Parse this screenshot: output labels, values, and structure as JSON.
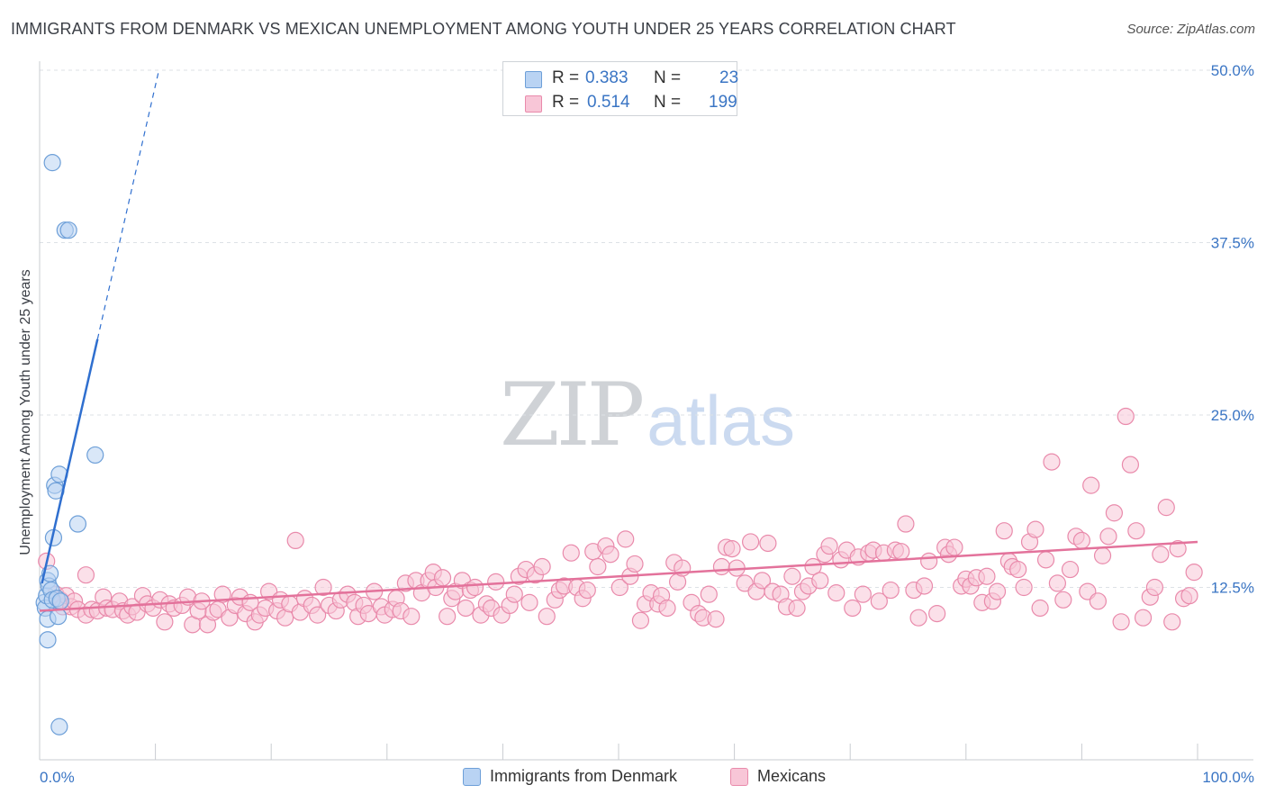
{
  "title": "IMMIGRANTS FROM DENMARK VS MEXICAN UNEMPLOYMENT AMONG YOUTH UNDER 25 YEARS CORRELATION CHART",
  "source": "Source: ZipAtlas.com",
  "watermark": {
    "zip": "ZIP",
    "atlas": "atlas"
  },
  "legend": {
    "rows": [
      {
        "r_label": "R =",
        "r_value": "0.383",
        "n_label": "N =",
        "n_value": "23"
      },
      {
        "r_label": "R =",
        "r_value": "0.514",
        "n_label": "N =",
        "n_value": "199"
      }
    ]
  },
  "bottom_legend": [
    "Immigrants from Denmark",
    "Mexicans"
  ],
  "colors": {
    "blue_fill": "#b9d3f3",
    "blue_stroke": "#6d9fd8",
    "blue_line": "#2f6fcf",
    "pink_fill": "#f8c6d7",
    "pink_stroke": "#e98aab",
    "pink_line": "#e3729b",
    "axis_text": "#3a75c4",
    "grid": "#dde1e6"
  },
  "chart_data": {
    "type": "scatter",
    "title": "IMMIGRANTS FROM DENMARK VS MEXICAN UNEMPLOYMENT AMONG YOUTH UNDER 25 YEARS CORRELATION CHART",
    "xlabel": "",
    "ylabel": "Unemployment Among Youth under 25 years",
    "xlim": [
      0,
      100
    ],
    "ylim": [
      0,
      50
    ],
    "x_tick_labels": [
      "0.0%",
      "100.0%"
    ],
    "y_ticks": [
      12.5,
      25.0,
      37.5,
      50.0
    ],
    "y_tick_labels": [
      "12.5%",
      "25.0%",
      "37.5%",
      "50.0%"
    ],
    "series": [
      {
        "name": "Immigrants from Denmark",
        "R": 0.383,
        "N": 23,
        "trend": {
          "x0": 0.2,
          "y0": 12.8,
          "x1": 5.0,
          "y1": 30.5,
          "dash_to_x": 10.3,
          "dash_to_y": 50.0
        },
        "points": [
          [
            0.4,
            11.4
          ],
          [
            0.5,
            11.0
          ],
          [
            0.6,
            11.9
          ],
          [
            0.7,
            13.0
          ],
          [
            0.7,
            10.2
          ],
          [
            0.7,
            8.7
          ],
          [
            0.8,
            12.6
          ],
          [
            0.9,
            13.5
          ],
          [
            1.0,
            12.3
          ],
          [
            1.1,
            11.6
          ],
          [
            1.1,
            43.3
          ],
          [
            1.2,
            16.1
          ],
          [
            1.3,
            19.9
          ],
          [
            1.4,
            19.5
          ],
          [
            1.5,
            11.7
          ],
          [
            1.6,
            10.4
          ],
          [
            1.7,
            20.7
          ],
          [
            1.7,
            2.4
          ],
          [
            1.8,
            11.5
          ],
          [
            2.2,
            38.4
          ],
          [
            2.5,
            38.4
          ],
          [
            3.3,
            17.1
          ],
          [
            4.8,
            22.1
          ]
        ]
      },
      {
        "name": "Mexicans",
        "R": 0.514,
        "N": 199,
        "trend": {
          "x0": 0.0,
          "y0": 10.8,
          "x1": 100.0,
          "y1": 15.8
        },
        "points": [
          [
            0.6,
            14.4
          ],
          [
            1.4,
            12.0
          ],
          [
            1.8,
            11.6
          ],
          [
            2.0,
            11.1
          ],
          [
            2.3,
            11.9
          ],
          [
            2.7,
            11.1
          ],
          [
            3.0,
            11.5
          ],
          [
            3.3,
            10.9
          ],
          [
            4.0,
            13.4
          ],
          [
            4.0,
            10.5
          ],
          [
            4.5,
            10.9
          ],
          [
            5.0,
            10.8
          ],
          [
            5.5,
            11.8
          ],
          [
            5.8,
            11.0
          ],
          [
            6.3,
            10.9
          ],
          [
            6.9,
            11.5
          ],
          [
            7.2,
            10.8
          ],
          [
            7.6,
            10.5
          ],
          [
            8.0,
            11.1
          ],
          [
            8.4,
            10.7
          ],
          [
            8.9,
            11.9
          ],
          [
            9.3,
            11.3
          ],
          [
            9.8,
            11.0
          ],
          [
            10.4,
            11.6
          ],
          [
            10.8,
            10.0
          ],
          [
            11.2,
            11.3
          ],
          [
            11.6,
            11.0
          ],
          [
            12.3,
            11.2
          ],
          [
            12.8,
            11.8
          ],
          [
            13.2,
            9.8
          ],
          [
            13.7,
            10.8
          ],
          [
            14.0,
            11.5
          ],
          [
            14.5,
            9.8
          ],
          [
            15.0,
            10.7
          ],
          [
            15.4,
            10.9
          ],
          [
            15.8,
            12.0
          ],
          [
            16.4,
            10.3
          ],
          [
            16.9,
            11.2
          ],
          [
            17.3,
            11.8
          ],
          [
            17.8,
            10.6
          ],
          [
            18.2,
            11.4
          ],
          [
            18.6,
            10.0
          ],
          [
            19.0,
            10.5
          ],
          [
            19.5,
            11.0
          ],
          [
            19.8,
            12.2
          ],
          [
            20.5,
            10.8
          ],
          [
            20.8,
            11.6
          ],
          [
            21.2,
            10.3
          ],
          [
            21.6,
            11.3
          ],
          [
            22.1,
            15.9
          ],
          [
            22.5,
            10.7
          ],
          [
            22.9,
            11.7
          ],
          [
            23.5,
            11.2
          ],
          [
            24.0,
            10.5
          ],
          [
            24.5,
            12.5
          ],
          [
            25.0,
            11.2
          ],
          [
            25.6,
            10.8
          ],
          [
            26.0,
            11.6
          ],
          [
            26.6,
            12.0
          ],
          [
            27.2,
            11.4
          ],
          [
            27.5,
            10.4
          ],
          [
            28.0,
            11.2
          ],
          [
            28.4,
            10.6
          ],
          [
            28.9,
            12.2
          ],
          [
            29.5,
            11.1
          ],
          [
            29.8,
            10.5
          ],
          [
            30.5,
            10.9
          ],
          [
            30.8,
            11.7
          ],
          [
            31.2,
            10.8
          ],
          [
            31.6,
            12.8
          ],
          [
            32.1,
            10.4
          ],
          [
            32.5,
            13.0
          ],
          [
            33.0,
            12.1
          ],
          [
            33.6,
            13.0
          ],
          [
            34.0,
            13.6
          ],
          [
            34.2,
            12.5
          ],
          [
            34.8,
            13.2
          ],
          [
            35.2,
            10.4
          ],
          [
            35.6,
            11.7
          ],
          [
            35.9,
            12.2
          ],
          [
            36.5,
            13.0
          ],
          [
            36.8,
            11.0
          ],
          [
            37.2,
            12.3
          ],
          [
            37.6,
            12.5
          ],
          [
            38.1,
            10.5
          ],
          [
            38.6,
            11.3
          ],
          [
            39.0,
            11.0
          ],
          [
            39.4,
            12.9
          ],
          [
            39.9,
            10.5
          ],
          [
            40.6,
            11.2
          ],
          [
            41.0,
            12.0
          ],
          [
            41.4,
            13.3
          ],
          [
            42.0,
            13.8
          ],
          [
            42.3,
            11.4
          ],
          [
            42.8,
            13.4
          ],
          [
            43.4,
            14.0
          ],
          [
            43.8,
            10.4
          ],
          [
            44.5,
            11.6
          ],
          [
            44.9,
            12.3
          ],
          [
            45.3,
            12.6
          ],
          [
            45.9,
            15.0
          ],
          [
            46.4,
            12.5
          ],
          [
            46.9,
            11.7
          ],
          [
            47.3,
            12.3
          ],
          [
            47.8,
            15.1
          ],
          [
            48.2,
            14.0
          ],
          [
            48.9,
            15.5
          ],
          [
            49.3,
            14.9
          ],
          [
            50.1,
            12.5
          ],
          [
            50.6,
            16.0
          ],
          [
            51.0,
            13.3
          ],
          [
            51.4,
            14.2
          ],
          [
            51.9,
            10.1
          ],
          [
            52.3,
            11.3
          ],
          [
            52.8,
            12.1
          ],
          [
            53.4,
            11.3
          ],
          [
            53.7,
            11.9
          ],
          [
            54.2,
            11.0
          ],
          [
            54.8,
            14.3
          ],
          [
            55.1,
            12.9
          ],
          [
            55.5,
            13.9
          ],
          [
            56.3,
            11.4
          ],
          [
            56.9,
            10.6
          ],
          [
            57.3,
            10.3
          ],
          [
            57.8,
            12.0
          ],
          [
            58.4,
            10.2
          ],
          [
            58.9,
            14.0
          ],
          [
            59.3,
            15.4
          ],
          [
            59.8,
            15.3
          ],
          [
            60.2,
            13.9
          ],
          [
            60.9,
            12.8
          ],
          [
            61.4,
            15.8
          ],
          [
            61.9,
            12.2
          ],
          [
            62.4,
            13.0
          ],
          [
            62.9,
            15.7
          ],
          [
            63.3,
            12.2
          ],
          [
            64.0,
            12.0
          ],
          [
            64.5,
            11.1
          ],
          [
            65.0,
            13.3
          ],
          [
            65.4,
            11.0
          ],
          [
            65.9,
            12.2
          ],
          [
            66.4,
            12.6
          ],
          [
            66.8,
            14.0
          ],
          [
            67.4,
            13.0
          ],
          [
            67.8,
            14.9
          ],
          [
            68.2,
            15.5
          ],
          [
            68.8,
            12.1
          ],
          [
            69.2,
            14.5
          ],
          [
            69.7,
            15.2
          ],
          [
            70.2,
            11.0
          ],
          [
            70.7,
            14.7
          ],
          [
            71.1,
            12.0
          ],
          [
            71.6,
            15.0
          ],
          [
            72.0,
            15.2
          ],
          [
            72.5,
            11.5
          ],
          [
            72.9,
            15.0
          ],
          [
            73.5,
            12.3
          ],
          [
            73.9,
            15.2
          ],
          [
            74.4,
            15.1
          ],
          [
            74.8,
            17.1
          ],
          [
            75.5,
            12.3
          ],
          [
            75.9,
            10.3
          ],
          [
            76.4,
            12.6
          ],
          [
            76.8,
            14.4
          ],
          [
            77.5,
            10.6
          ],
          [
            78.2,
            15.4
          ],
          [
            78.5,
            14.9
          ],
          [
            79.0,
            15.4
          ],
          [
            79.6,
            12.6
          ],
          [
            80.0,
            13.1
          ],
          [
            80.4,
            12.6
          ],
          [
            80.9,
            13.2
          ],
          [
            81.4,
            11.4
          ],
          [
            81.8,
            13.3
          ],
          [
            82.3,
            11.5
          ],
          [
            82.7,
            12.2
          ],
          [
            83.3,
            16.6
          ],
          [
            83.7,
            14.4
          ],
          [
            84.0,
            14.0
          ],
          [
            84.5,
            13.8
          ],
          [
            85.0,
            12.5
          ],
          [
            85.5,
            15.8
          ],
          [
            86.0,
            16.7
          ],
          [
            86.4,
            11.0
          ],
          [
            86.9,
            14.5
          ],
          [
            87.4,
            21.6
          ],
          [
            87.9,
            12.8
          ],
          [
            88.4,
            11.6
          ],
          [
            89.0,
            13.8
          ],
          [
            89.5,
            16.2
          ],
          [
            90.0,
            15.9
          ],
          [
            90.5,
            12.2
          ],
          [
            90.8,
            19.9
          ],
          [
            91.4,
            11.5
          ],
          [
            91.8,
            14.8
          ],
          [
            92.3,
            16.2
          ],
          [
            92.8,
            17.9
          ],
          [
            93.4,
            10.0
          ],
          [
            93.8,
            24.9
          ],
          [
            94.2,
            21.4
          ],
          [
            94.7,
            16.6
          ],
          [
            95.3,
            10.3
          ],
          [
            95.9,
            11.8
          ],
          [
            96.3,
            12.5
          ],
          [
            96.8,
            14.9
          ],
          [
            97.3,
            18.3
          ],
          [
            97.8,
            10.0
          ],
          [
            98.3,
            15.3
          ],
          [
            98.8,
            11.7
          ],
          [
            99.3,
            11.9
          ],
          [
            99.7,
            13.6
          ]
        ]
      }
    ]
  }
}
